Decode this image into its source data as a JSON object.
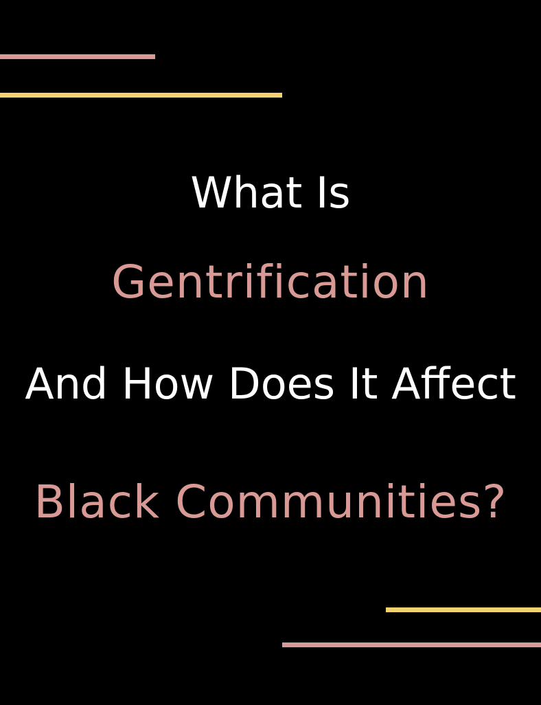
{
  "poster": {
    "line1": "What Is",
    "line2": "Gentrification",
    "line3": "And How Does It Affect",
    "line4": "Black Communities?"
  },
  "colors": {
    "background": "#000000",
    "white_text": "#ffffff",
    "pink": "#d99a95",
    "yellow": "#f3d271"
  }
}
